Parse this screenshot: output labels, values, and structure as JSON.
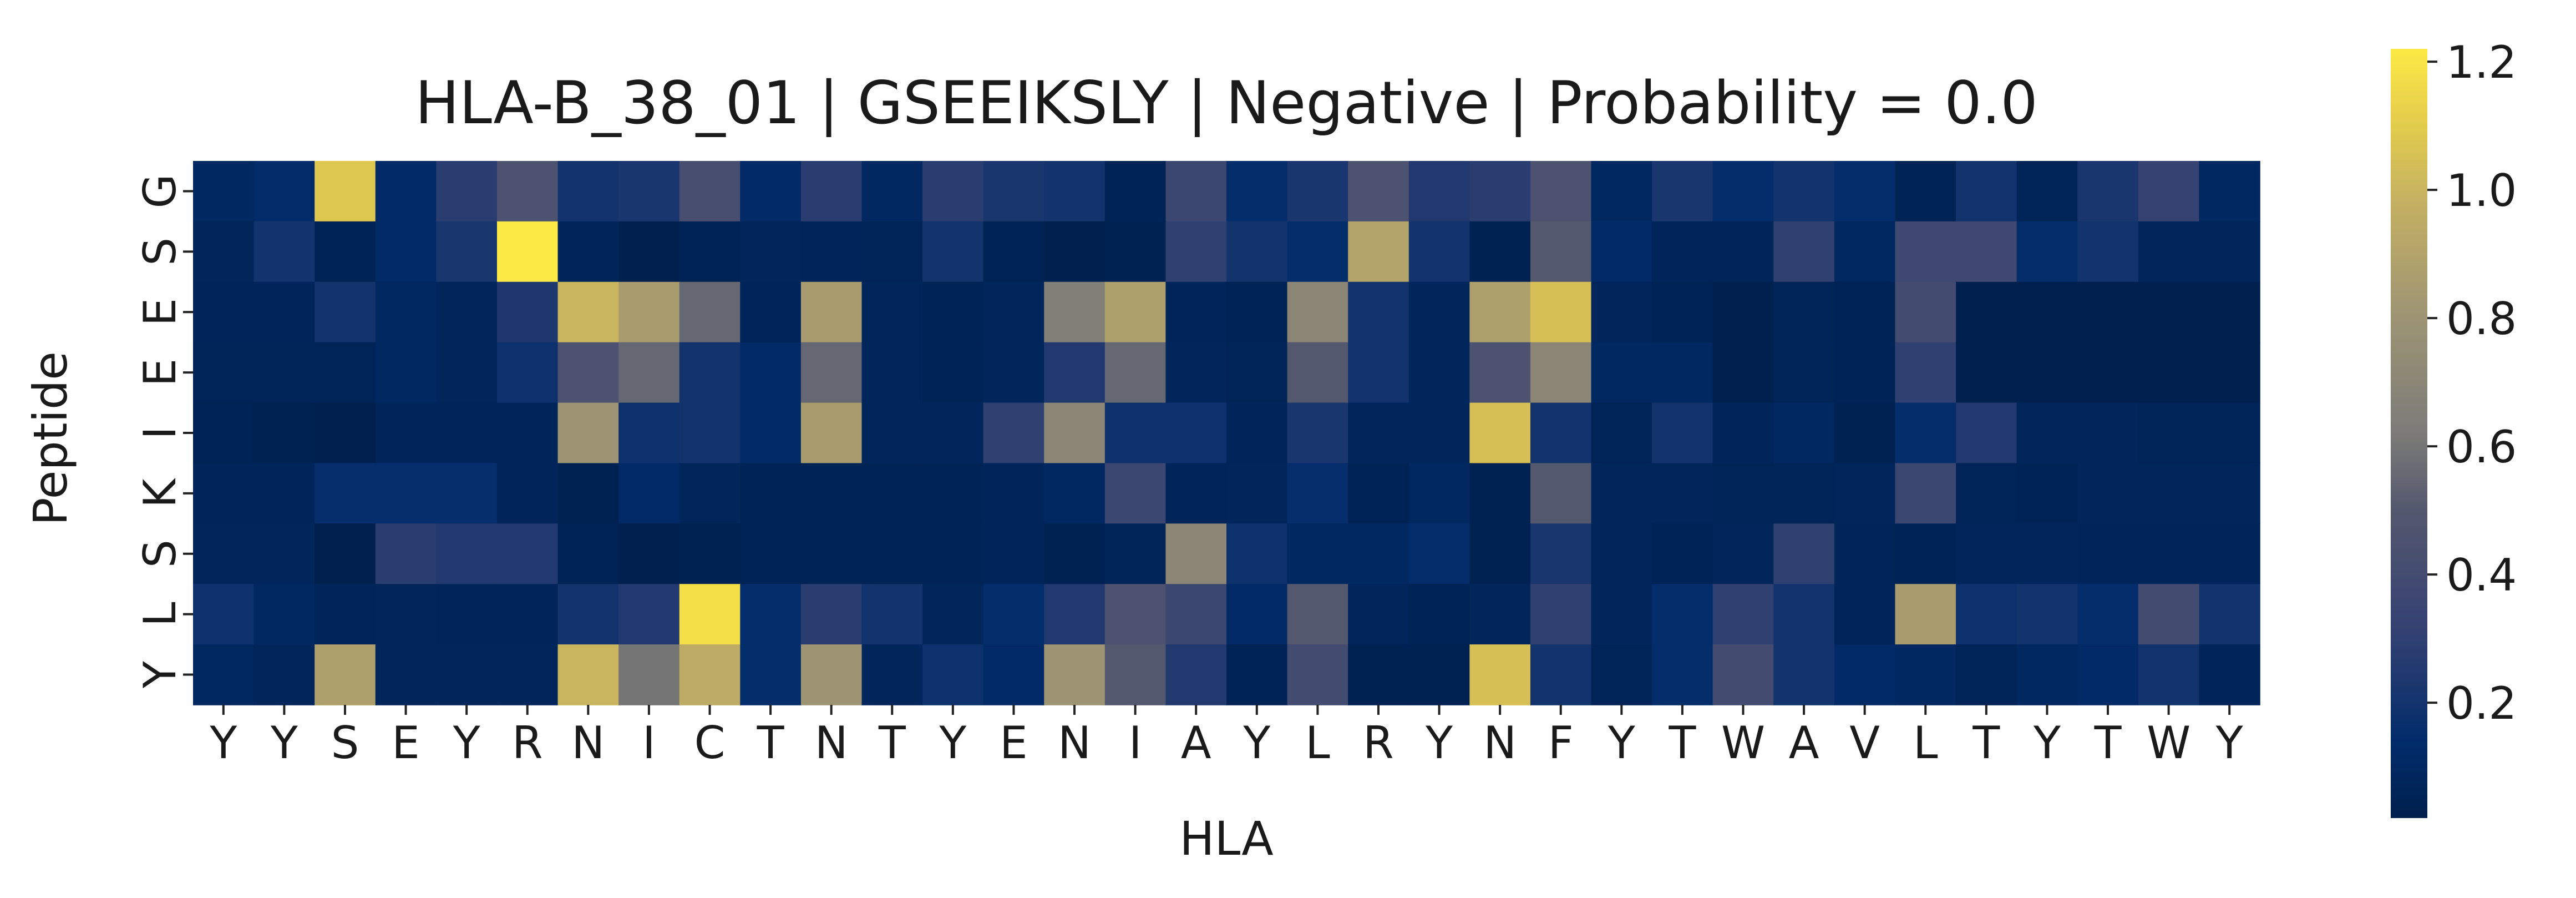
{
  "chart_data": {
    "type": "heatmap",
    "title": "HLA-B_38_01 | GSEEIKSLY | Negative | Probability = 0.0",
    "xlabel": "HLA",
    "ylabel": "Peptide",
    "x_tick_labels": [
      "Y",
      "Y",
      "S",
      "E",
      "Y",
      "R",
      "N",
      "I",
      "C",
      "T",
      "N",
      "T",
      "Y",
      "E",
      "N",
      "I",
      "A",
      "Y",
      "L",
      "R",
      "Y",
      "N",
      "F",
      "Y",
      "T",
      "W",
      "A",
      "V",
      "L",
      "T",
      "Y",
      "T",
      "W",
      "Y"
    ],
    "y_tick_labels": [
      "G",
      "S",
      "E",
      "E",
      "I",
      "K",
      "S",
      "L",
      "Y"
    ],
    "colormap": "cividis",
    "colorbar": {
      "vmin": 0.02,
      "vmax": 1.22,
      "ticks": [
        0.2,
        0.4,
        0.6,
        0.8,
        1.0,
        1.2
      ],
      "tick_labels": [
        "0.2",
        "0.4",
        "0.6",
        "0.8",
        "1.0",
        "1.2"
      ]
    },
    "values": [
      [
        0.1,
        0.13,
        1.08,
        0.12,
        0.28,
        0.45,
        0.2,
        0.22,
        0.42,
        0.12,
        0.28,
        0.1,
        0.28,
        0.22,
        0.2,
        0.05,
        0.35,
        0.15,
        0.22,
        0.45,
        0.25,
        0.28,
        0.45,
        0.1,
        0.22,
        0.15,
        0.2,
        0.15,
        0.05,
        0.2,
        0.06,
        0.22,
        0.32,
        0.1
      ],
      [
        0.08,
        0.2,
        0.05,
        0.12,
        0.22,
        1.22,
        0.07,
        0.03,
        0.05,
        0.08,
        0.07,
        0.06,
        0.2,
        0.05,
        0.03,
        0.04,
        0.3,
        0.2,
        0.15,
        0.9,
        0.2,
        0.04,
        0.5,
        0.12,
        0.07,
        0.07,
        0.3,
        0.1,
        0.38,
        0.38,
        0.15,
        0.2,
        0.08,
        0.08
      ],
      [
        0.07,
        0.07,
        0.2,
        0.1,
        0.08,
        0.24,
        1.0,
        0.85,
        0.55,
        0.07,
        0.85,
        0.08,
        0.05,
        0.08,
        0.65,
        0.88,
        0.07,
        0.05,
        0.7,
        0.2,
        0.08,
        0.88,
        1.05,
        0.08,
        0.05,
        0.03,
        0.06,
        0.05,
        0.4,
        0.03,
        0.03,
        0.03,
        0.03,
        0.03
      ],
      [
        0.06,
        0.06,
        0.06,
        0.1,
        0.08,
        0.18,
        0.45,
        0.55,
        0.2,
        0.12,
        0.55,
        0.08,
        0.05,
        0.08,
        0.25,
        0.55,
        0.08,
        0.06,
        0.5,
        0.2,
        0.08,
        0.45,
        0.7,
        0.1,
        0.1,
        0.03,
        0.06,
        0.05,
        0.3,
        0.03,
        0.03,
        0.03,
        0.03,
        0.03
      ],
      [
        0.05,
        0.04,
        0.02,
        0.07,
        0.07,
        0.07,
        0.8,
        0.18,
        0.2,
        0.12,
        0.85,
        0.08,
        0.08,
        0.3,
        0.7,
        0.18,
        0.18,
        0.07,
        0.22,
        0.08,
        0.08,
        1.05,
        0.2,
        0.06,
        0.2,
        0.07,
        0.1,
        0.04,
        0.15,
        0.25,
        0.08,
        0.08,
        0.06,
        0.06
      ],
      [
        0.07,
        0.07,
        0.16,
        0.16,
        0.16,
        0.07,
        0.04,
        0.12,
        0.08,
        0.05,
        0.05,
        0.05,
        0.05,
        0.07,
        0.1,
        0.35,
        0.07,
        0.08,
        0.16,
        0.05,
        0.1,
        0.04,
        0.5,
        0.08,
        0.08,
        0.06,
        0.06,
        0.08,
        0.35,
        0.06,
        0.05,
        0.08,
        0.08,
        0.08
      ],
      [
        0.08,
        0.08,
        0.02,
        0.28,
        0.25,
        0.25,
        0.05,
        0.03,
        0.04,
        0.05,
        0.05,
        0.05,
        0.05,
        0.07,
        0.04,
        0.06,
        0.7,
        0.18,
        0.1,
        0.1,
        0.15,
        0.04,
        0.22,
        0.08,
        0.05,
        0.08,
        0.3,
        0.07,
        0.05,
        0.08,
        0.08,
        0.07,
        0.07,
        0.07
      ],
      [
        0.18,
        0.1,
        0.07,
        0.08,
        0.07,
        0.07,
        0.2,
        0.25,
        1.18,
        0.15,
        0.28,
        0.2,
        0.08,
        0.15,
        0.25,
        0.45,
        0.35,
        0.12,
        0.5,
        0.08,
        0.05,
        0.08,
        0.3,
        0.08,
        0.15,
        0.3,
        0.2,
        0.07,
        0.85,
        0.18,
        0.2,
        0.15,
        0.4,
        0.2
      ],
      [
        0.09,
        0.08,
        0.88,
        0.08,
        0.08,
        0.08,
        1.0,
        0.6,
        0.95,
        0.15,
        0.8,
        0.08,
        0.18,
        0.12,
        0.8,
        0.5,
        0.25,
        0.05,
        0.4,
        0.04,
        0.04,
        1.05,
        0.2,
        0.06,
        0.15,
        0.4,
        0.2,
        0.12,
        0.1,
        0.06,
        0.1,
        0.12,
        0.2,
        0.07
      ]
    ]
  }
}
